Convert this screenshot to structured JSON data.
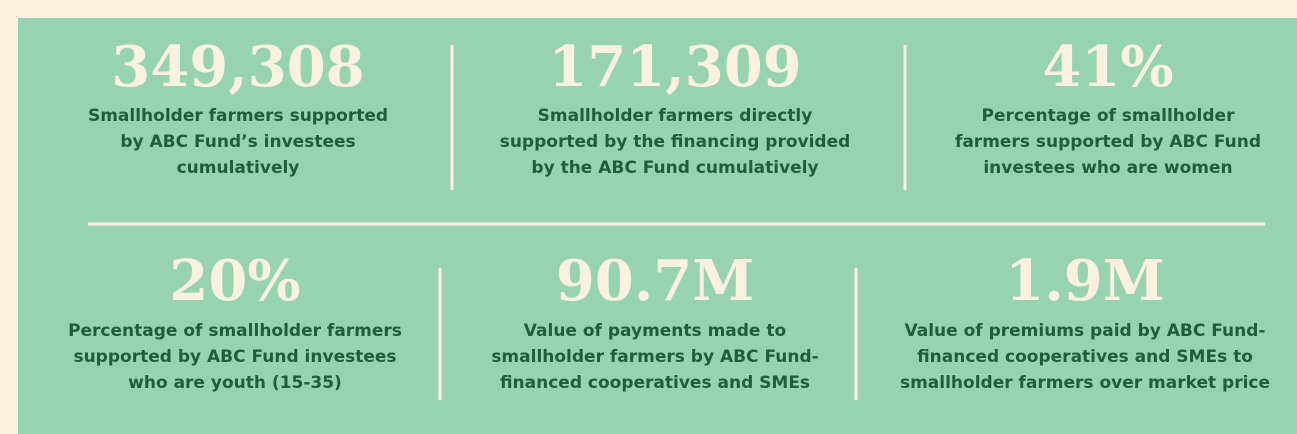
{
  "rows": [
    [
      {
        "figure": "349,308",
        "description": [
          "Smallholder farmers supported",
          "by ABC Fund’s investees",
          "cumulatively"
        ]
      },
      {
        "figure": "171,309",
        "description": [
          "Smallholder farmers directly",
          "supported by the financing provided",
          "by the ABC Fund cumulatively"
        ]
      },
      {
        "figure": "41%",
        "description": [
          "Percentage of smallholder",
          "farmers supported by ABC Fund",
          "investees who are women"
        ]
      }
    ],
    [
      {
        "figure": "20%",
        "description": [
          "Percentage of smallholder farmers",
          "supported by ABC Fund investees",
          "who are youth (15-35)"
        ]
      },
      {
        "figure": "90.7M",
        "description": [
          "Value of payments made to",
          "smallholder farmers by ABC Fund-",
          "financed cooperatives and SMEs"
        ]
      },
      {
        "figure": "1.9M",
        "description": [
          "Value of premiums paid by ABC Fund-",
          "financed cooperatives and SMEs to",
          "smallholder farmers over market price"
        ]
      }
    ]
  ]
}
